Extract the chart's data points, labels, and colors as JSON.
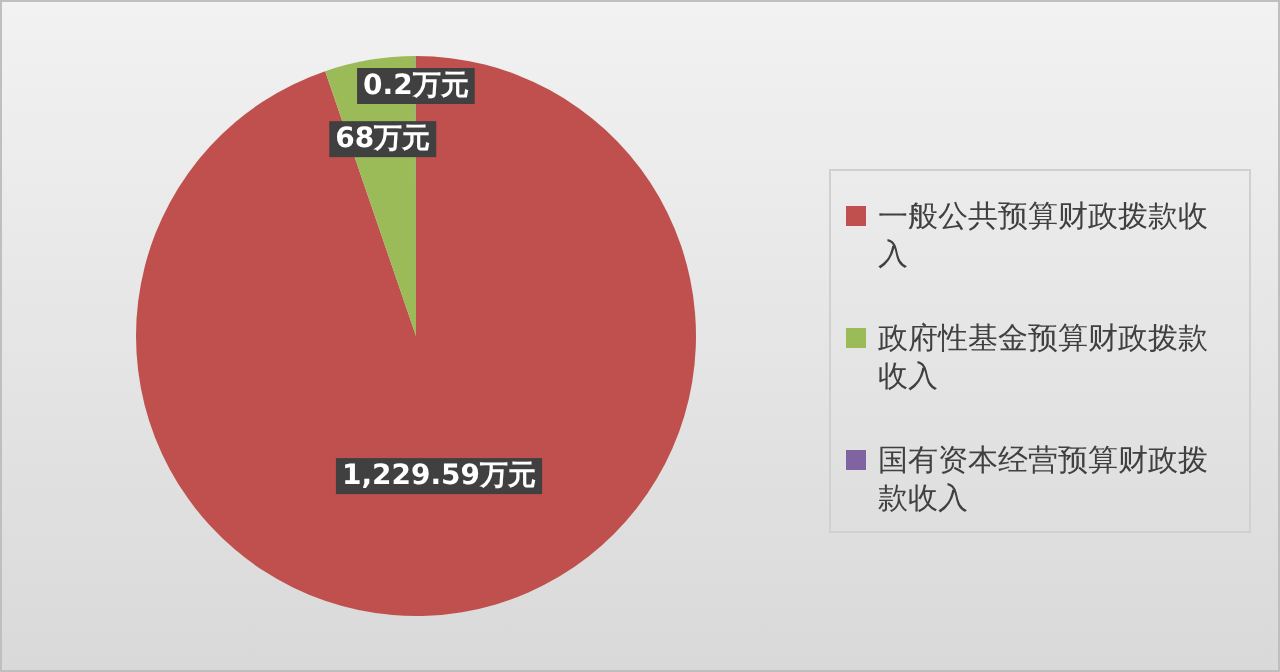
{
  "chart_data": {
    "type": "pie",
    "categories": [
      "一般公共预算财政拨款收入",
      "政府性基金预算财政拨款收入",
      "国有资本经营预算财政拨款收入"
    ],
    "values": [
      1229.59,
      68,
      0.2
    ],
    "colors": [
      "#c0504d",
      "#9bbb59",
      "#8064a2"
    ],
    "value_labels": [
      "1,229.59万元",
      "68万元",
      "0.2万元"
    ],
    "legend": "right"
  }
}
